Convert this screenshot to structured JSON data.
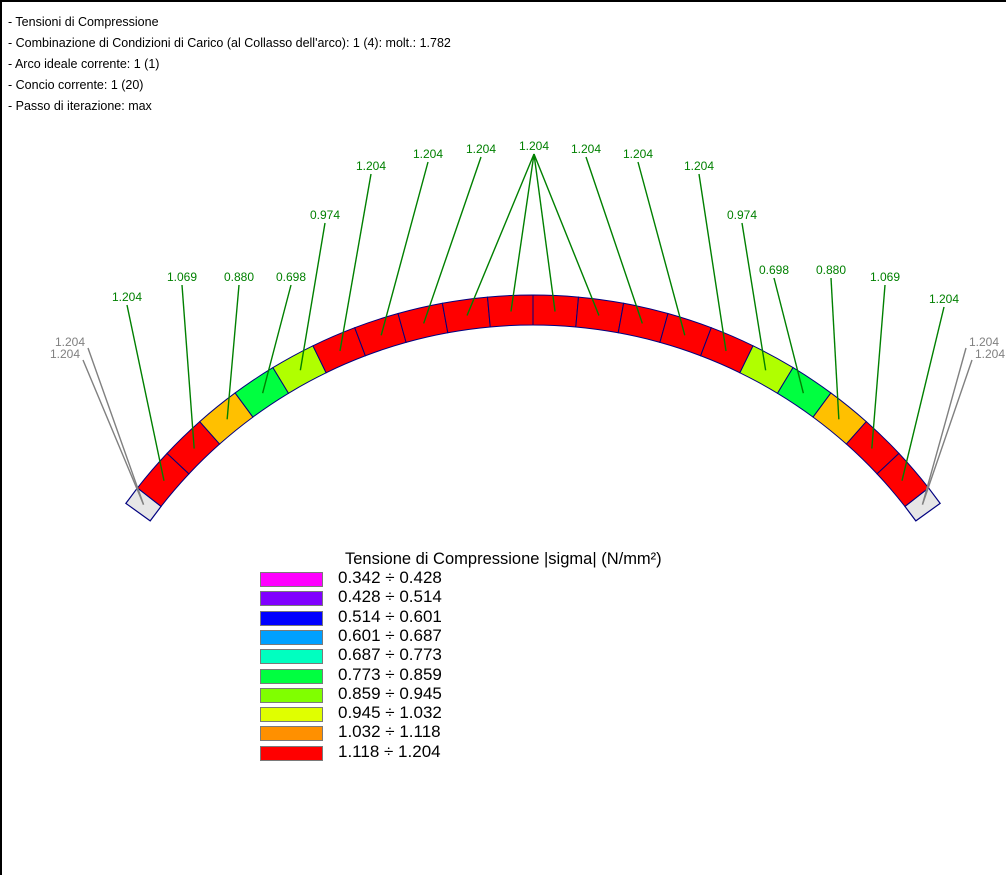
{
  "info": {
    "line1": "- Tensioni di Compressione",
    "line2": "- Combinazione di Condizioni di Carico (al Collasso dell'arco): 1  (4): molt.: 1.782",
    "line3": "- Arco ideale corrente: 1  (1)",
    "line4": "- Concio corrente: 1  (20)",
    "line5": "- Passo di iterazione: max"
  },
  "arch": {
    "blocks": [
      {
        "color": "#ff0000",
        "value": "1.204"
      },
      {
        "color": "#ff0000",
        "value": "1.069"
      },
      {
        "color": "#ffc000",
        "value": "0.880"
      },
      {
        "color": "#00ff40",
        "value": "0.698"
      },
      {
        "color": "#b0ff00",
        "value": "0.974"
      },
      {
        "color": "#ff0000",
        "value": "1.204"
      },
      {
        "color": "#ff0000",
        "value": "1.204"
      },
      {
        "color": "#ff0000",
        "value": "1.204"
      },
      {
        "color": "#ff0000",
        "value": "1.204"
      },
      {
        "color": "#ff0000",
        "value": "1.204"
      },
      {
        "color": "#ff0000",
        "value": "1.204"
      },
      {
        "color": "#ff0000",
        "value": "1.204"
      },
      {
        "color": "#ff0000",
        "value": "1.204"
      },
      {
        "color": "#ff0000",
        "value": "1.204"
      },
      {
        "color": "#ff0000",
        "value": "1.204"
      },
      {
        "color": "#b0ff00",
        "value": "0.974"
      },
      {
        "color": "#00ff40",
        "value": "0.698"
      },
      {
        "color": "#ffc000",
        "value": "0.880"
      },
      {
        "color": "#ff0000",
        "value": "1.069"
      },
      {
        "color": "#ff0000",
        "value": "1.204"
      }
    ],
    "end_labels_left": [
      "1.204",
      "1.204"
    ],
    "end_labels_right": [
      "1.204",
      "1.204"
    ],
    "label_color": "#008000",
    "end_label_color": "#808080",
    "leader_color": "#008000",
    "end_leader_color": "#808080",
    "outline_color": "#000080"
  },
  "legend": {
    "title": "Tensione di Compressione |sigma| (N/mm²)",
    "items": [
      {
        "label": "0.342 ÷ 0.428",
        "color": "#ff00ff"
      },
      {
        "label": "0.428 ÷ 0.514",
        "color": "#8000ff"
      },
      {
        "label": "0.514 ÷ 0.601",
        "color": "#0000ff"
      },
      {
        "label": "0.601 ÷ 0.687",
        "color": "#00a0ff"
      },
      {
        "label": "0.687 ÷ 0.773",
        "color": "#00ffc0"
      },
      {
        "label": "0.773 ÷ 0.859",
        "color": "#00ff40"
      },
      {
        "label": "0.859 ÷ 0.945",
        "color": "#80ff00"
      },
      {
        "label": "0.945 ÷ 1.032",
        "color": "#e0ff00"
      },
      {
        "label": "1.032 ÷ 1.118",
        "color": "#ff9000"
      },
      {
        "label": "1.118 ÷ 1.204",
        "color": "#ff0000"
      }
    ]
  }
}
